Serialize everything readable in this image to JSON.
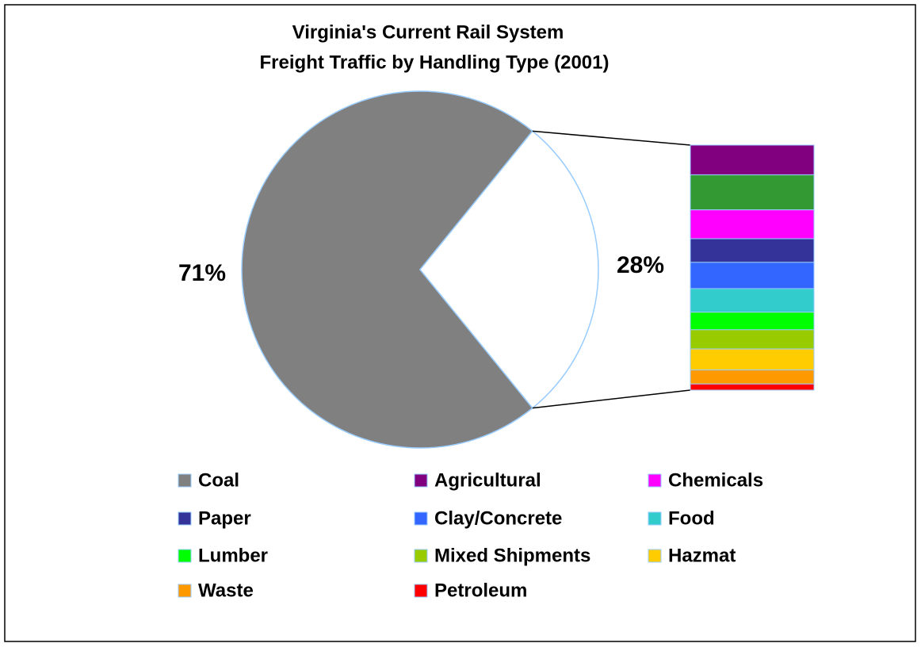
{
  "chart_data": {
    "type": "pie_of_bar",
    "title": "Virginia's Current Rail System",
    "subtitle": "Freight Traffic by Handling Type (2001)",
    "categories": [
      "Coal",
      "Agricultural",
      null,
      "Chemicals",
      "Paper",
      "Clay/Concrete",
      "Food",
      "Lumber",
      "Mixed Shipments",
      "Hazmat",
      "Waste",
      "Petroleum"
    ],
    "values": [
      71,
      3.4,
      4.0,
      3.3,
      2.7,
      3.0,
      2.7,
      2.0,
      2.2,
      2.4,
      1.6,
      0.7
    ],
    "value_labels": [
      "71%",
      null,
      null,
      null,
      null,
      null,
      null,
      null,
      null,
      null,
      null,
      null
    ],
    "colors": [
      "#808080",
      "#800080",
      "#339933",
      "#ff00ff",
      "#333399",
      "#3366ff",
      "#33cccc",
      "#00ff00",
      "#99cc00",
      "#ffcc00",
      "#ff9900",
      "#ff0000"
    ],
    "split_label": {
      "value": 28,
      "label": "28%"
    },
    "legend": "bottom"
  }
}
